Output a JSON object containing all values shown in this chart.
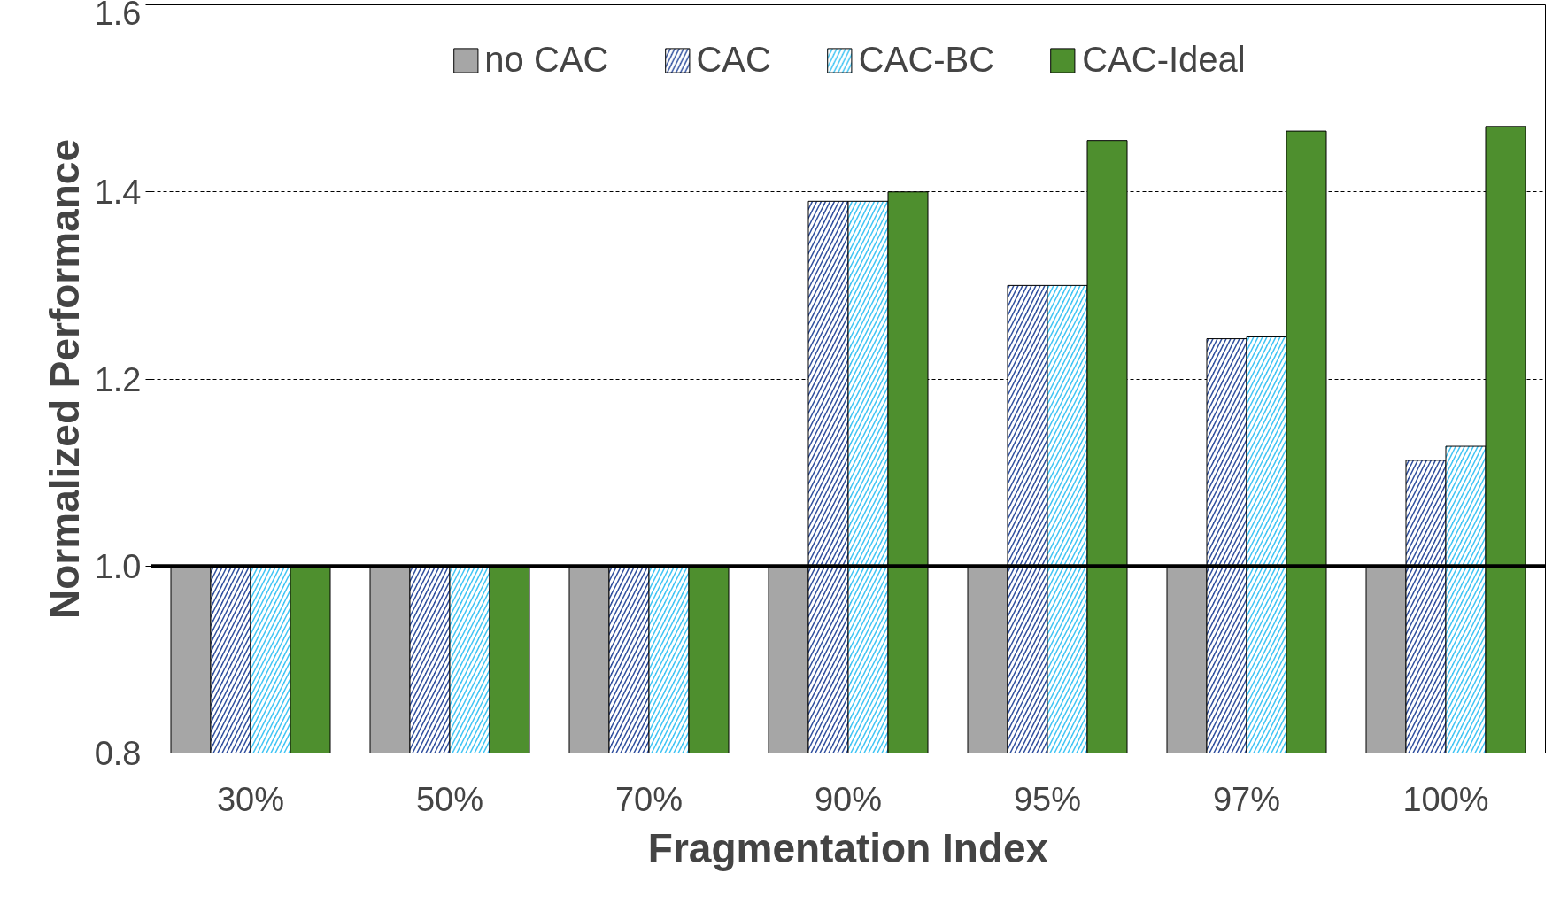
{
  "chart_data": {
    "type": "bar",
    "xlabel": "Fragmentation Index",
    "ylabel": "Normalized Performance",
    "categories": [
      "30%",
      "50%",
      "70%",
      "90%",
      "95%",
      "97%",
      "100%"
    ],
    "series": [
      {
        "name": "no CAC",
        "color": "#a6a6a6",
        "values": [
          1.0,
          1.0,
          1.0,
          1.0,
          1.0,
          1.0,
          1.0
        ]
      },
      {
        "name": "CAC",
        "color": "#2f4f9e",
        "values": [
          1.0,
          1.0,
          1.0,
          1.39,
          1.3,
          1.243,
          1.113
        ]
      },
      {
        "name": "CAC-BC",
        "color": "#3fc4f4",
        "values": [
          1.0,
          1.0,
          1.0,
          1.39,
          1.3,
          1.245,
          1.128
        ]
      },
      {
        "name": "CAC-Ideal",
        "color": "#4e8f2e",
        "values": [
          1.0,
          1.0,
          1.0,
          1.4,
          1.455,
          1.465,
          1.47
        ]
      }
    ],
    "ylim": [
      0.8,
      1.6
    ],
    "yticks": [
      {
        "value": 0.8,
        "label": "0.8"
      },
      {
        "value": 1.0,
        "label": "1.0"
      },
      {
        "value": 1.2,
        "label": "1.2"
      },
      {
        "value": 1.4,
        "label": "1.4"
      },
      {
        "value": 1.6,
        "label": "1.6"
      }
    ],
    "ref_lines": [
      {
        "axis": "y",
        "value": 1.0,
        "color": "#000000"
      }
    ],
    "grid": "y",
    "legend": "top"
  }
}
